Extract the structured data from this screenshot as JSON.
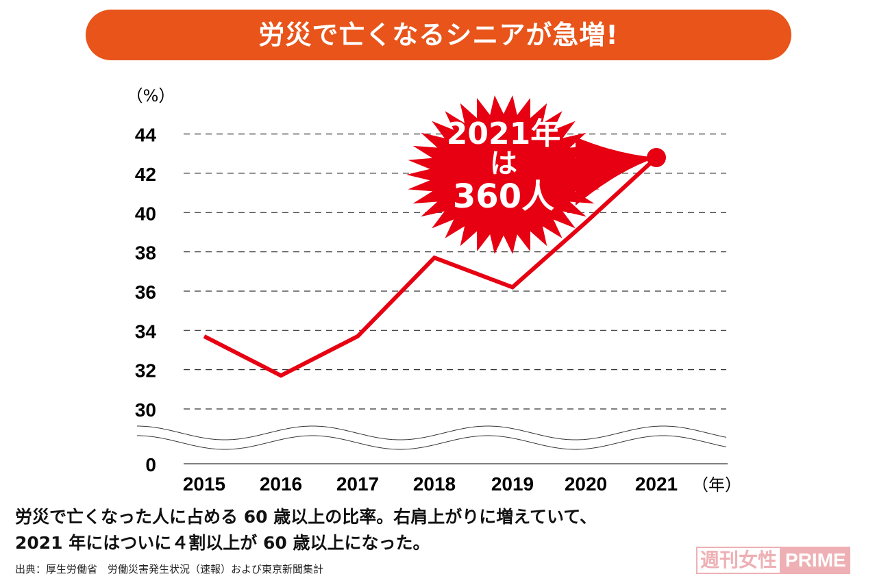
{
  "title": "労災で亡くなるシニアが急増!",
  "chart_data": {
    "type": "line",
    "ylabel": "（%）",
    "xlabel": "（年）",
    "categories": [
      "2015",
      "2016",
      "2017",
      "2018",
      "2019",
      "2020",
      "2021"
    ],
    "values": [
      33.7,
      31.7,
      33.7,
      37.7,
      36.2,
      39.5,
      42.8
    ],
    "yticks": [
      44,
      42,
      40,
      38,
      36,
      34,
      32,
      30
    ],
    "ybreak_label": "0",
    "ylim": [
      30,
      44
    ],
    "axis_break": true,
    "grid": "dashed horizontal",
    "line_color": "#e60012",
    "annotation": {
      "lines": [
        "2021年",
        "は",
        "360人"
      ],
      "color": "#e60012"
    }
  },
  "caption": [
    "労災で亡くなった人に占める 60 歳以上の比率。右肩上がりに増えていて、",
    "2021 年にはついに４割以上が 60 歳以上になった。"
  ],
  "source": "出典：厚生労働省　労働災害発生状況（速報）および東京新聞集計",
  "logo": {
    "a": "週刊女性",
    "b": "PRIME"
  },
  "colors": {
    "banner": "#e8541a",
    "accent": "#e60012"
  }
}
